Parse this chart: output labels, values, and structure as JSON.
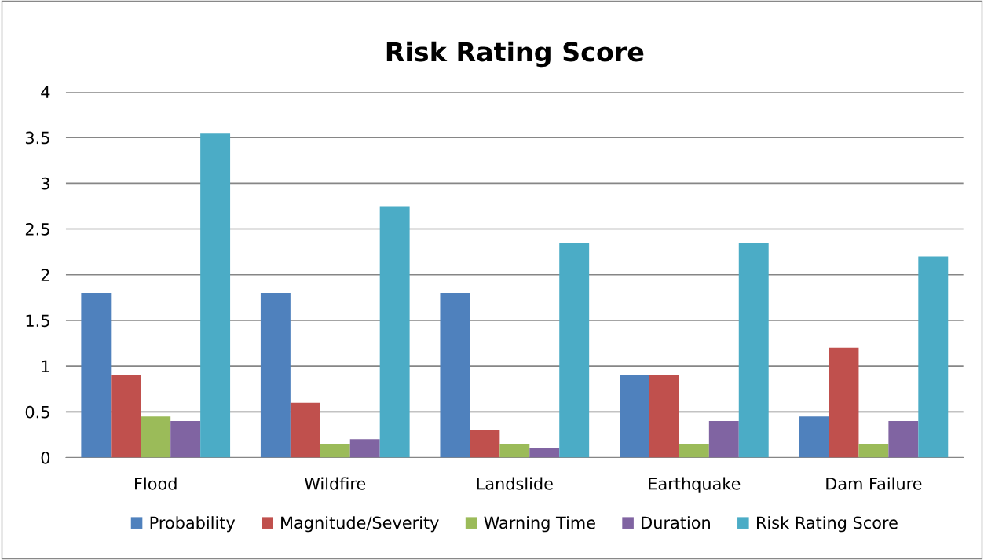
{
  "chart_data": {
    "type": "bar",
    "title": "Risk Rating Score",
    "categories": [
      "Flood",
      "Wildfire",
      "Landslide",
      "Earthquake",
      "Dam Failure"
    ],
    "series": [
      {
        "name": "Probability",
        "color": "#4f81bd",
        "values": [
          1.8,
          1.8,
          1.8,
          0.9,
          0.45
        ]
      },
      {
        "name": "Magnitude/Severity",
        "color": "#c0504d",
        "values": [
          0.9,
          0.6,
          0.3,
          0.9,
          1.2
        ]
      },
      {
        "name": "Warning Time",
        "color": "#9bbb59",
        "values": [
          0.45,
          0.15,
          0.15,
          0.15,
          0.15
        ]
      },
      {
        "name": "Duration",
        "color": "#8064a2",
        "values": [
          0.4,
          0.2,
          0.1,
          0.4,
          0.4
        ]
      },
      {
        "name": "Risk Rating Score",
        "color": "#4bacc6",
        "values": [
          3.55,
          2.75,
          2.35,
          2.35,
          2.2
        ]
      }
    ],
    "ylim": [
      0,
      4
    ],
    "yticks": [
      0,
      0.5,
      1,
      1.5,
      2,
      2.5,
      3,
      3.5,
      4
    ],
    "grid": "y",
    "legend": "bottom"
  }
}
